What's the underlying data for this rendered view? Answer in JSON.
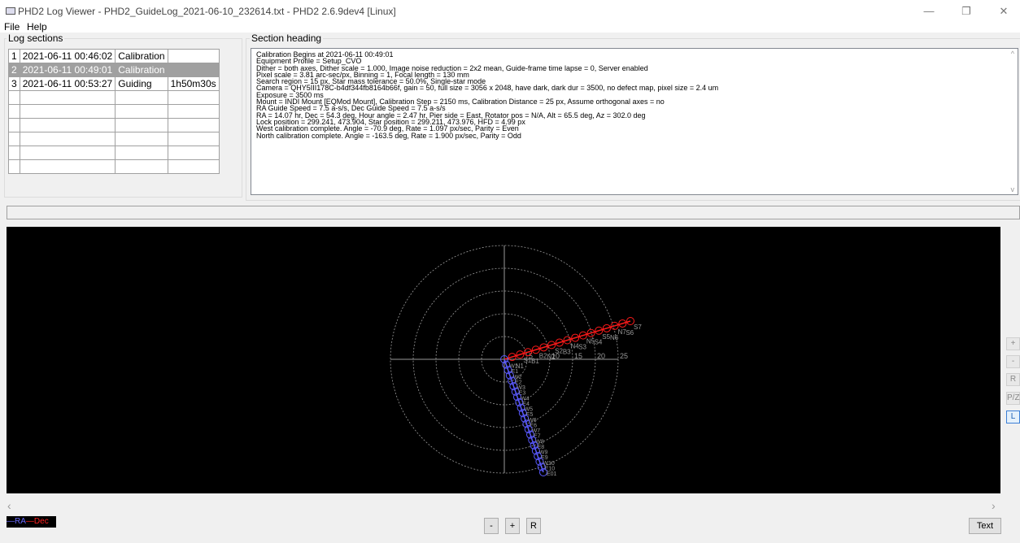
{
  "window": {
    "title": "PHD2 Log Viewer - PHD2_GuideLog_2021-06-10_232614.txt - PHD2 2.6.9dev4 [Linux]",
    "minimize": "—",
    "restore": "❐",
    "close": "✕"
  },
  "menu": {
    "file": "File",
    "help": "Help"
  },
  "log_sections": {
    "title": "Log sections",
    "rows": [
      {
        "num": "1",
        "date": "2021-06-11 00:46:02",
        "type": "Calibration",
        "dur": ""
      },
      {
        "num": "2",
        "date": "2021-06-11 00:49:01",
        "type": "Calibration",
        "dur": ""
      },
      {
        "num": "3",
        "date": "2021-06-11 00:53:27",
        "type": "Guiding",
        "dur": "1h50m30s"
      }
    ],
    "selected_index": 1,
    "empty_rows": 6
  },
  "section_heading": {
    "title": "Section heading",
    "lines": [
      "Calibration Begins at 2021-06-11 00:49:01",
      "Equipment Profile = Setup_CVO",
      "Dither = both axes, Dither scale = 1.000, Image noise reduction = 2x2 mean, Guide-frame time lapse = 0, Server enabled",
      "Pixel scale = 3.81 arc-sec/px, Binning = 1, Focal length = 130 mm",
      "Search region = 15 px, Star mass tolerance = 50.0%, Single-star mode",
      "Camera = QHY5III178C-b4df344fb8164b66f, gain = 50, full size = 3056 x 2048, have dark, dark dur = 3500, no defect map, pixel size = 2.4 um",
      "Exposure = 3500 ms",
      "Mount = INDI Mount [EQMod Mount], Calibration Step = 2150 ms, Calibration Distance = 25 px, Assume orthogonal axes = no",
      "RA Guide Speed = 7.5 a-s/s, Dec Guide Speed = 7.5 a-s/s",
      "RA = 14.07 hr, Dec = 54.3 deg, Hour angle = 2.47 hr, Pier side = East, Rotator pos = N/A, Alt = 65.5 deg, Az = 302.0 deg",
      "Lock position = 299.241, 473.904, Star position = 299.211, 473.976, HFD = 4.99 px",
      "West calibration complete. Angle = -70.9 deg, Rate = 1.097 px/sec, Parity = Even",
      "North calibration complete. Angle = -163.5 deg, Rate = 1.900 px/sec, Parity = Odd"
    ]
  },
  "plot": {
    "ring_labels": [
      "5",
      "10",
      "15",
      "20",
      "25"
    ],
    "ring_step": 5,
    "max_radius": 25,
    "dec_points": [
      "N1",
      "S1",
      "B1",
      "B2",
      "N2",
      "S2",
      "B3",
      "N4",
      "S3",
      "N5",
      "S4",
      "S5",
      "N6",
      "N7",
      "S6",
      "S7"
    ],
    "ra_points": [
      "W1",
      "E1",
      "W2",
      "E2",
      "W3",
      "E3",
      "W4",
      "E4",
      "W5",
      "E5",
      "W6",
      "E6",
      "W7",
      "E7",
      "W8",
      "E8",
      "W9",
      "E9",
      "W10",
      "E10",
      "E01"
    ],
    "colors": {
      "ra": "#5a5aff",
      "dec": "#ff1a1a",
      "grid": "#9a9a9a",
      "background": "#000000"
    }
  },
  "side_buttons": [
    "+",
    "-",
    "R",
    "P/Z",
    "L"
  ],
  "legend": {
    "ra": "—RA",
    "dec": "—Dec"
  },
  "bottom_buttons": {
    "minus": "-",
    "plus": "+",
    "reset": "R",
    "text": "Text"
  },
  "scroll": {
    "left": "‹",
    "right": "›",
    "up": "^",
    "down": "v"
  }
}
